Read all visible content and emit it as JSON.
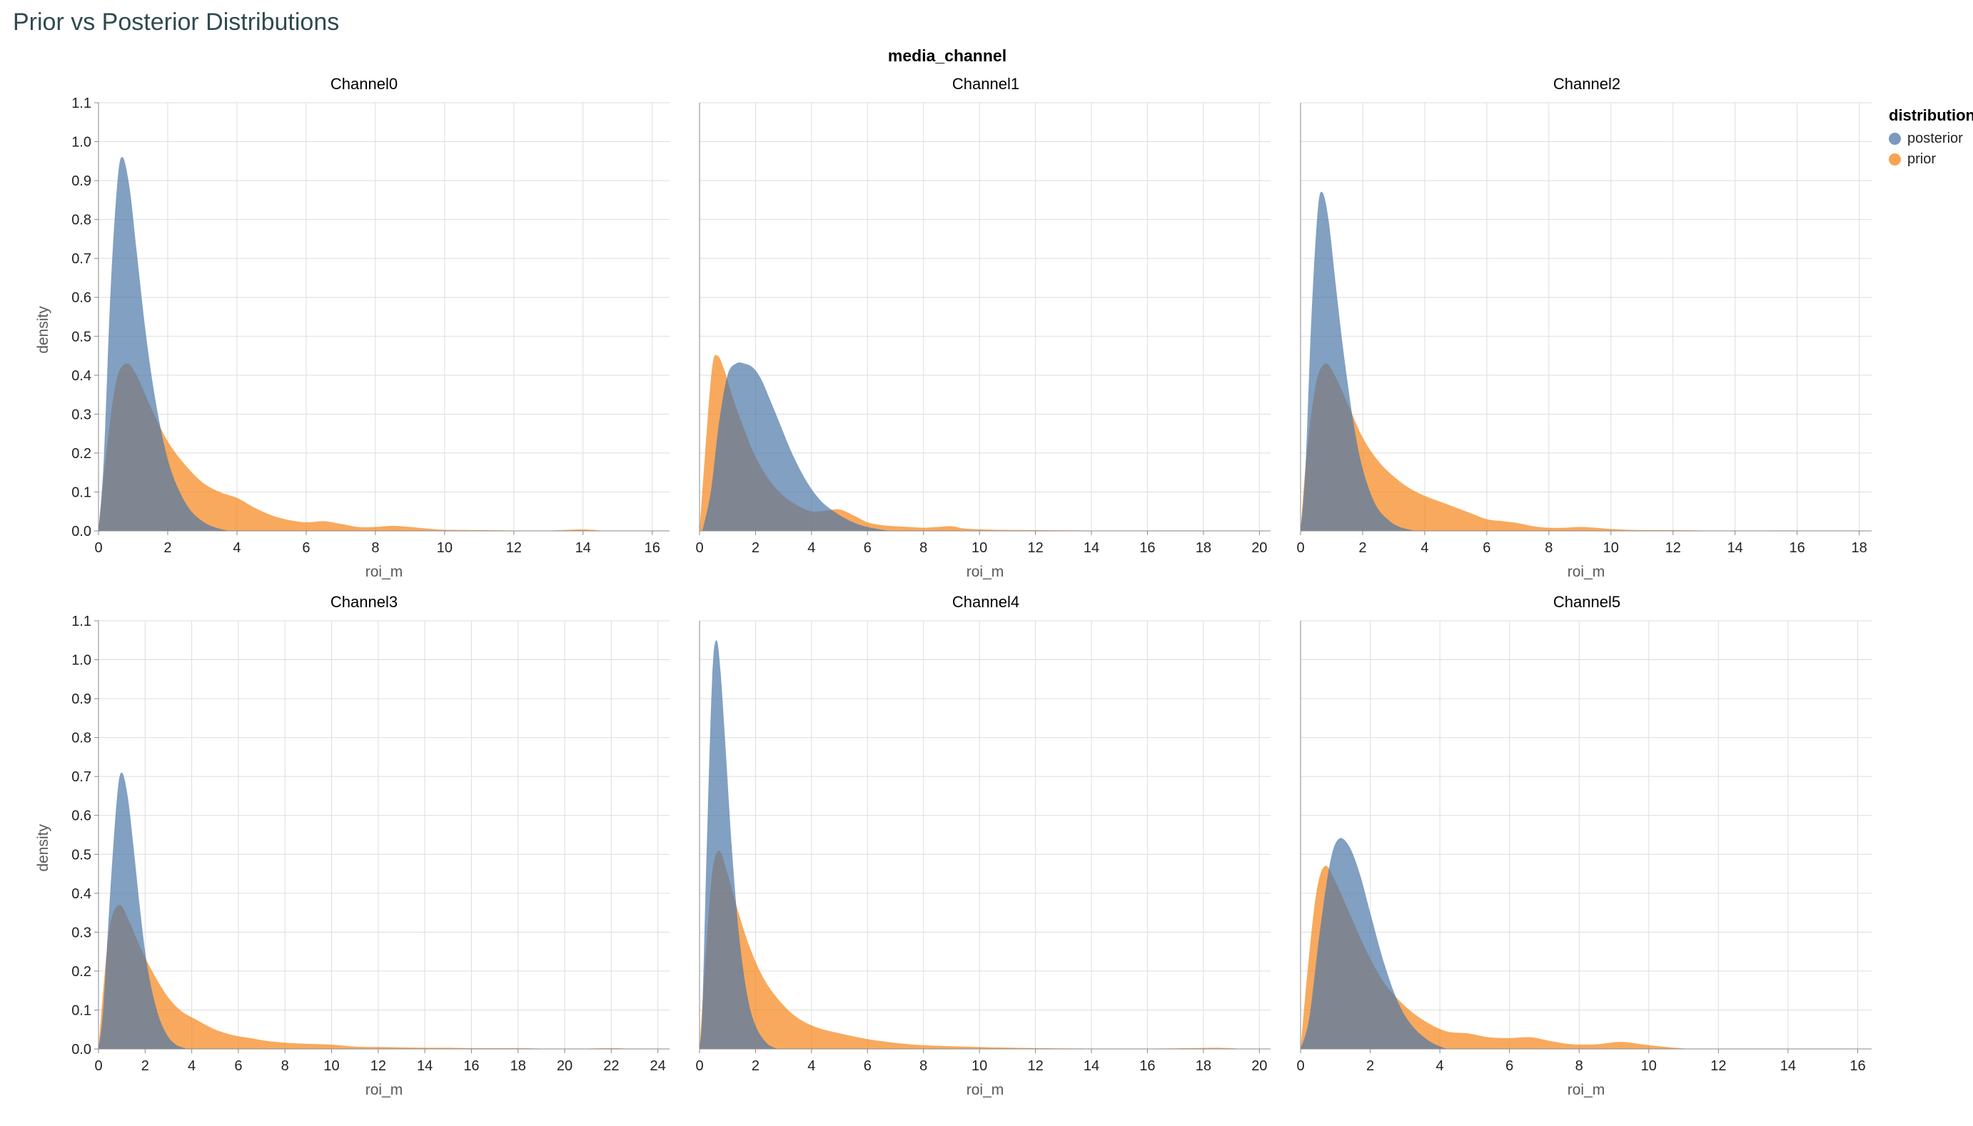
{
  "page": {
    "title": "Prior vs Posterior Distributions",
    "title_color": "#2f4a4f"
  },
  "facet_header": "media_channel",
  "axis": {
    "xlabel": "roi_m",
    "ylabel": "density"
  },
  "legend": {
    "title": "distribution",
    "entries": [
      {
        "label": "posterior",
        "color": "#4c78a8"
      },
      {
        "label": "prior",
        "color": "#f58518"
      }
    ],
    "fill_opacity": 0.7
  },
  "chart_data": [
    {
      "type": "area",
      "title": "Channel0",
      "xlabel": "roi_m",
      "ylabel": "density",
      "xlim": [
        0,
        16.5
      ],
      "ylim": [
        0,
        1.1
      ],
      "x_ticks": [
        0,
        2,
        4,
        6,
        8,
        10,
        12,
        14,
        16
      ],
      "y_ticks": [
        0,
        0.1,
        0.2,
        0.3,
        0.4,
        0.5,
        0.6,
        0.7,
        0.8,
        0.9,
        1.0,
        1.1
      ],
      "grid": true,
      "series": [
        {
          "name": "prior",
          "color": "#f58518",
          "x": [
            0,
            0.2,
            0.5,
            0.8,
            1.1,
            1.5,
            2.0,
            2.5,
            3.0,
            3.5,
            4.0,
            4.5,
            5.0,
            5.5,
            6.0,
            6.5,
            7.0,
            7.5,
            8.0,
            8.5,
            9.0,
            9.5,
            10,
            11,
            12,
            13,
            14,
            14.6
          ],
          "y": [
            0,
            0.18,
            0.38,
            0.43,
            0.4,
            0.32,
            0.23,
            0.17,
            0.125,
            0.1,
            0.085,
            0.06,
            0.04,
            0.028,
            0.022,
            0.025,
            0.018,
            0.01,
            0.01,
            0.013,
            0.01,
            0.006,
            0.003,
            0.002,
            0.001,
            0.001,
            0.004,
            0
          ]
        },
        {
          "name": "posterior",
          "color": "#4c78a8",
          "x": [
            0,
            0.15,
            0.35,
            0.55,
            0.7,
            0.9,
            1.1,
            1.35,
            1.6,
            1.9,
            2.2,
            2.6,
            3.0,
            3.4,
            3.8
          ],
          "y": [
            0,
            0.18,
            0.62,
            0.9,
            0.96,
            0.88,
            0.72,
            0.52,
            0.36,
            0.22,
            0.13,
            0.06,
            0.025,
            0.008,
            0
          ]
        }
      ]
    },
    {
      "type": "area",
      "title": "Channel1",
      "xlabel": "roi_m",
      "ylabel": "density",
      "xlim": [
        0,
        20.4
      ],
      "ylim": [
        0,
        1.1
      ],
      "x_ticks": [
        0,
        2,
        4,
        6,
        8,
        10,
        12,
        14,
        16,
        18,
        20
      ],
      "y_ticks": [
        0,
        0.1,
        0.2,
        0.3,
        0.4,
        0.5,
        0.6,
        0.7,
        0.8,
        0.9,
        1.0,
        1.1
      ],
      "grid": true,
      "series": [
        {
          "name": "prior",
          "color": "#f58518",
          "x": [
            0,
            0.2,
            0.45,
            0.65,
            0.9,
            1.2,
            1.6,
            2.0,
            2.5,
            3.0,
            3.5,
            4.0,
            4.5,
            5.0,
            5.5,
            6.0,
            6.5,
            7.0,
            7.5,
            8.0,
            8.5,
            9.0,
            9.5,
            10.5,
            12,
            14,
            16,
            18,
            19.5
          ],
          "y": [
            0,
            0.2,
            0.42,
            0.45,
            0.41,
            0.34,
            0.26,
            0.19,
            0.13,
            0.09,
            0.065,
            0.05,
            0.052,
            0.055,
            0.04,
            0.022,
            0.015,
            0.012,
            0.01,
            0.008,
            0.01,
            0.012,
            0.006,
            0.003,
            0.002,
            0.001,
            0.001,
            0.001,
            0
          ]
        },
        {
          "name": "posterior",
          "color": "#4c78a8",
          "x": [
            0.1,
            0.4,
            0.7,
            1.0,
            1.3,
            1.6,
            1.9,
            2.2,
            2.5,
            2.9,
            3.3,
            3.8,
            4.3,
            4.8,
            5.4,
            6.0,
            6.8
          ],
          "y": [
            0,
            0.1,
            0.28,
            0.4,
            0.43,
            0.43,
            0.42,
            0.39,
            0.34,
            0.27,
            0.2,
            0.13,
            0.08,
            0.05,
            0.025,
            0.01,
            0
          ]
        }
      ]
    },
    {
      "type": "area",
      "title": "Channel2",
      "xlabel": "roi_m",
      "ylabel": "density",
      "xlim": [
        0,
        18.4
      ],
      "ylim": [
        0,
        1.1
      ],
      "x_ticks": [
        0,
        2,
        4,
        6,
        8,
        10,
        12,
        14,
        16,
        18
      ],
      "y_ticks": [
        0,
        0.1,
        0.2,
        0.3,
        0.4,
        0.5,
        0.6,
        0.7,
        0.8,
        0.9,
        1.0,
        1.1
      ],
      "grid": true,
      "series": [
        {
          "name": "prior",
          "color": "#f58518",
          "x": [
            0,
            0.2,
            0.5,
            0.8,
            1.1,
            1.5,
            2.0,
            2.5,
            3.0,
            3.5,
            4.0,
            4.5,
            5.0,
            5.5,
            6.0,
            6.5,
            7.0,
            7.5,
            8.0,
            8.5,
            9.0,
            9.5,
            10.0,
            10.5,
            11,
            12,
            13,
            14,
            15,
            16,
            17
          ],
          "y": [
            0,
            0.2,
            0.38,
            0.43,
            0.4,
            0.33,
            0.24,
            0.18,
            0.14,
            0.11,
            0.09,
            0.075,
            0.06,
            0.045,
            0.03,
            0.025,
            0.02,
            0.012,
            0.008,
            0.008,
            0.01,
            0.008,
            0.005,
            0.003,
            0.002,
            0.002,
            0.001,
            0.001,
            0.001,
            0.001,
            0
          ]
        },
        {
          "name": "posterior",
          "color": "#4c78a8",
          "x": [
            0,
            0.15,
            0.35,
            0.55,
            0.7,
            0.9,
            1.15,
            1.4,
            1.7,
            2.0,
            2.4,
            2.8,
            3.2,
            3.7
          ],
          "y": [
            0,
            0.15,
            0.55,
            0.82,
            0.87,
            0.8,
            0.62,
            0.45,
            0.28,
            0.16,
            0.07,
            0.03,
            0.01,
            0
          ]
        }
      ]
    },
    {
      "type": "area",
      "title": "Channel3",
      "xlabel": "roi_m",
      "ylabel": "density",
      "xlim": [
        0,
        24.5
      ],
      "ylim": [
        0,
        1.1
      ],
      "x_ticks": [
        0,
        2,
        4,
        6,
        8,
        10,
        12,
        14,
        16,
        18,
        20,
        22,
        24
      ],
      "y_ticks": [
        0,
        0.1,
        0.2,
        0.3,
        0.4,
        0.5,
        0.6,
        0.7,
        0.8,
        0.9,
        1.0,
        1.1
      ],
      "grid": true,
      "series": [
        {
          "name": "prior",
          "color": "#f58518",
          "x": [
            0,
            0.2,
            0.5,
            0.9,
            1.3,
            1.8,
            2.3,
            2.9,
            3.5,
            4.2,
            5.0,
            5.8,
            6.5,
            7.3,
            8.0,
            9.0,
            10.0,
            11,
            12,
            13,
            14,
            15,
            16,
            17,
            18,
            19,
            20,
            21,
            22,
            23
          ],
          "y": [
            0,
            0.15,
            0.32,
            0.37,
            0.33,
            0.26,
            0.2,
            0.14,
            0.1,
            0.075,
            0.05,
            0.035,
            0.028,
            0.02,
            0.016,
            0.013,
            0.011,
            0.006,
            0.005,
            0.004,
            0.003,
            0.003,
            0.002,
            0.002,
            0.002,
            0.001,
            0.001,
            0.001,
            0.002,
            0
          ]
        },
        {
          "name": "posterior",
          "color": "#4c78a8",
          "x": [
            0,
            0.2,
            0.5,
            0.8,
            1.0,
            1.25,
            1.5,
            1.8,
            2.1,
            2.5,
            2.9,
            3.3,
            3.8
          ],
          "y": [
            0,
            0.1,
            0.4,
            0.65,
            0.71,
            0.65,
            0.52,
            0.35,
            0.21,
            0.1,
            0.04,
            0.012,
            0
          ]
        }
      ]
    },
    {
      "type": "area",
      "title": "Channel4",
      "xlabel": "roi_m",
      "ylabel": "density",
      "xlim": [
        0,
        20.4
      ],
      "ylim": [
        0,
        1.1
      ],
      "x_ticks": [
        0,
        2,
        4,
        6,
        8,
        10,
        12,
        14,
        16,
        18,
        20
      ],
      "y_ticks": [
        0,
        0.1,
        0.2,
        0.3,
        0.4,
        0.5,
        0.6,
        0.7,
        0.8,
        0.9,
        1.0,
        1.1
      ],
      "grid": true,
      "series": [
        {
          "name": "prior",
          "color": "#f58518",
          "x": [
            0,
            0.2,
            0.45,
            0.7,
            1.0,
            1.35,
            1.8,
            2.3,
            2.9,
            3.5,
            4.2,
            5.0,
            5.8,
            6.5,
            7.5,
            8.5,
            9.5,
            10.5,
            12,
            14,
            16,
            17.5,
            18.5,
            19.5
          ],
          "y": [
            0,
            0.22,
            0.45,
            0.51,
            0.45,
            0.36,
            0.26,
            0.18,
            0.12,
            0.08,
            0.055,
            0.04,
            0.028,
            0.02,
            0.012,
            0.008,
            0.006,
            0.004,
            0.002,
            0.001,
            0.001,
            0.002,
            0.003,
            0
          ]
        },
        {
          "name": "posterior",
          "color": "#4c78a8",
          "x": [
            0,
            0.1,
            0.25,
            0.45,
            0.6,
            0.75,
            0.95,
            1.15,
            1.4,
            1.7,
            2.0,
            2.4,
            2.8
          ],
          "y": [
            0,
            0.1,
            0.5,
            0.95,
            1.05,
            0.97,
            0.75,
            0.52,
            0.3,
            0.14,
            0.06,
            0.015,
            0
          ]
        }
      ]
    },
    {
      "type": "area",
      "title": "Channel5",
      "xlabel": "roi_m",
      "ylabel": "density",
      "xlim": [
        0,
        16.4
      ],
      "ylim": [
        0,
        1.1
      ],
      "x_ticks": [
        0,
        2,
        4,
        6,
        8,
        10,
        12,
        14,
        16
      ],
      "y_ticks": [
        0,
        0.1,
        0.2,
        0.3,
        0.4,
        0.5,
        0.6,
        0.7,
        0.8,
        0.9,
        1.0,
        1.1
      ],
      "grid": true,
      "series": [
        {
          "name": "prior",
          "color": "#f58518",
          "x": [
            0,
            0.2,
            0.45,
            0.7,
            1.0,
            1.4,
            1.9,
            2.4,
            3.0,
            3.6,
            4.2,
            4.8,
            5.4,
            6.0,
            6.6,
            7.2,
            7.8,
            8.5,
            9.2,
            9.8,
            10.5,
            11.2
          ],
          "y": [
            0,
            0.2,
            0.4,
            0.47,
            0.43,
            0.35,
            0.25,
            0.17,
            0.11,
            0.07,
            0.045,
            0.04,
            0.03,
            0.028,
            0.03,
            0.02,
            0.012,
            0.012,
            0.018,
            0.012,
            0.005,
            0
          ]
        },
        {
          "name": "posterior",
          "color": "#4c78a8",
          "x": [
            0,
            0.25,
            0.55,
            0.85,
            1.1,
            1.4,
            1.7,
            2.0,
            2.4,
            2.8,
            3.2,
            3.7,
            4.2
          ],
          "y": [
            0,
            0.08,
            0.3,
            0.48,
            0.54,
            0.52,
            0.45,
            0.35,
            0.22,
            0.12,
            0.06,
            0.02,
            0
          ]
        }
      ]
    }
  ]
}
